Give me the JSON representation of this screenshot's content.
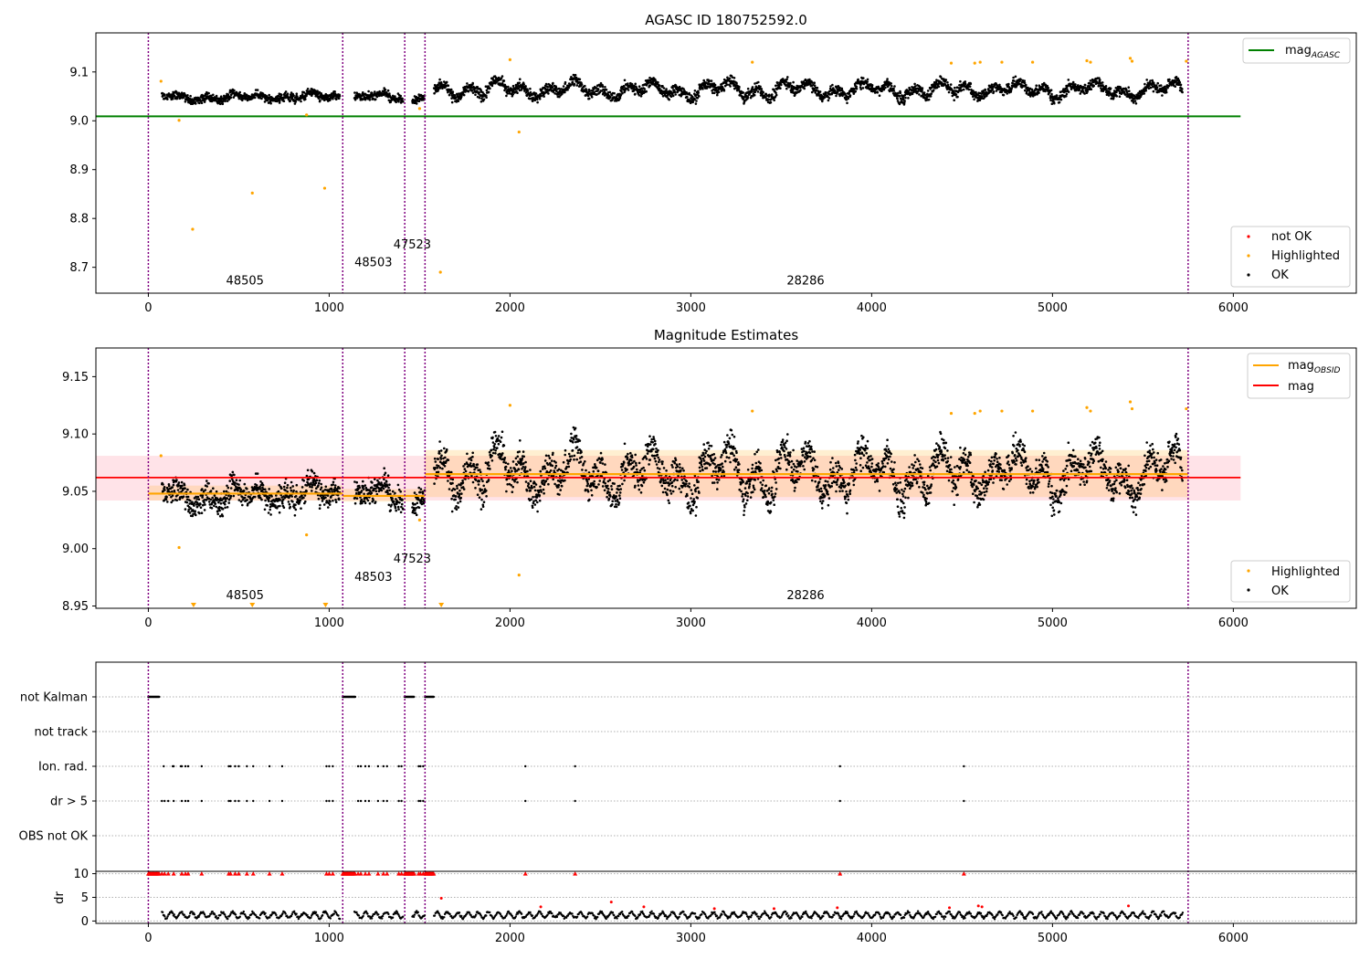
{
  "figure": {
    "top_title": "AGASC ID 180752592.0",
    "middle_title": "Magnitude Estimates"
  },
  "colors": {
    "ok": "#000000",
    "highlighted": "#ffa500",
    "not_ok": "#ff0000",
    "agasc_line": "#008000",
    "obsid_line": "#ffa500",
    "mag_line": "#ff0000",
    "obsid_boundary": "#800080",
    "mag_band": "#ffc0cb"
  },
  "chart_data": [
    {
      "type": "scatter",
      "title": "AGASC ID 180752592.0",
      "xlim": [
        -290,
        6680
      ],
      "ylim": [
        8.647,
        9.18
      ],
      "xticks": [
        "0",
        "1000",
        "2000",
        "3000",
        "4000",
        "5000",
        "6000"
      ],
      "yticks": [
        "8.7",
        "8.8",
        "8.9",
        "9.0",
        "9.1"
      ],
      "obsid_boundaries": [
        0,
        1075,
        1418,
        1530,
        5750
      ],
      "obsid_labels": [
        {
          "text": "48505",
          "x": 430,
          "y": 8.665
        },
        {
          "text": "48503",
          "x": 1140,
          "y": 8.702
        },
        {
          "text": "47523",
          "x": 1355,
          "y": 8.739
        },
        {
          "text": "28286",
          "x": 3530,
          "y": 8.665
        }
      ],
      "mag_agasc": {
        "value": 9.009,
        "x_range": [
          -290,
          6040
        ]
      },
      "ok_segments": [
        {
          "x": [
            75,
            1060
          ],
          "base": 9.049,
          "amp": 0.01,
          "noise": 0.009
        },
        {
          "x": [
            1140,
            1410
          ],
          "base": 9.048,
          "amp": 0.01,
          "noise": 0.009
        },
        {
          "x": [
            1460,
            1530
          ],
          "base": 9.048,
          "amp": 0.005,
          "noise": 0.008
        },
        {
          "x": [
            1580,
            5720
          ],
          "base": 9.064,
          "amp": 0.02,
          "noise": 0.012
        }
      ],
      "highlighted_points": [
        {
          "x": 70,
          "y": 9.081
        },
        {
          "x": 170,
          "y": 9.001
        },
        {
          "x": 245,
          "y": 8.778
        },
        {
          "x": 575,
          "y": 8.852
        },
        {
          "x": 975,
          "y": 8.862
        },
        {
          "x": 875,
          "y": 9.012
        },
        {
          "x": 1500,
          "y": 9.025
        },
        {
          "x": 1615,
          "y": 8.69
        },
        {
          "x": 2000,
          "y": 9.125
        },
        {
          "x": 2050,
          "y": 8.977
        },
        {
          "x": 3340,
          "y": 9.12
        },
        {
          "x": 4440,
          "y": 9.118
        },
        {
          "x": 4570,
          "y": 9.118
        },
        {
          "x": 4600,
          "y": 9.12
        },
        {
          "x": 4720,
          "y": 9.12
        },
        {
          "x": 4890,
          "y": 9.12
        },
        {
          "x": 5190,
          "y": 9.123
        },
        {
          "x": 5210,
          "y": 9.12
        },
        {
          "x": 5430,
          "y": 9.128
        },
        {
          "x": 5440,
          "y": 9.122
        },
        {
          "x": 5740,
          "y": 9.122
        }
      ],
      "legend_upper": [
        "mag$_{AGASC}$"
      ],
      "legend_lower": [
        "not OK",
        "Highlighted",
        "OK"
      ]
    },
    {
      "type": "scatter",
      "title": "Magnitude Estimates",
      "xlim": [
        -290,
        6680
      ],
      "ylim": [
        8.948,
        9.175
      ],
      "xticks": [
        "0",
        "1000",
        "2000",
        "3000",
        "4000",
        "5000",
        "6000"
      ],
      "yticks": [
        "8.95",
        "9.00",
        "9.05",
        "9.10",
        "9.15"
      ],
      "obsid_labels": [
        {
          "text": "48505",
          "x": 430,
          "y": 8.956
        },
        {
          "text": "48503",
          "x": 1140,
          "y": 8.972
        },
        {
          "text": "47523",
          "x": 1355,
          "y": 8.988
        },
        {
          "text": "28286",
          "x": 3530,
          "y": 8.956
        }
      ],
      "mag": {
        "value": 9.062,
        "band": [
          9.042,
          9.081
        ],
        "x_range": [
          -290,
          6040
        ]
      },
      "mag_obsid": [
        {
          "x": [
            0,
            1075
          ],
          "value": 9.048,
          "band": [
            9.042,
            9.055
          ]
        },
        {
          "x": [
            1075,
            1530
          ],
          "value": 9.046,
          "band": [
            9.041,
            9.052
          ]
        },
        {
          "x": [
            1530,
            5750
          ],
          "value": 9.065,
          "band": [
            9.045,
            9.086
          ]
        }
      ],
      "clipped_markers": [
        250,
        575,
        980,
        1620
      ],
      "legend_upper": [
        "mag$_{OBSID}$",
        "mag"
      ],
      "legend_lower": [
        "Highlighted",
        "OK"
      ]
    },
    {
      "type": "scatter",
      "xlim": [
        -290,
        6680
      ],
      "xticks": [
        "0",
        "1000",
        "2000",
        "3000",
        "4000",
        "5000",
        "6000"
      ],
      "flag_rows": [
        "not Kalman",
        "not track",
        "Ion. rad.",
        "dr > 5",
        "OBS not OK"
      ],
      "flags": {
        "not Kalman": [
          [
            0,
            60
          ],
          [
            1075,
            1145
          ],
          [
            1418,
            1470
          ],
          [
            1530,
            1580
          ]
        ],
        "Ion. rad.": [
          85,
          135,
          140,
          180,
          185,
          205,
          220,
          295,
          445,
          455,
          480,
          500,
          545,
          580,
          670,
          740,
          985,
          1000,
          1020,
          1160,
          1175,
          1200,
          1220,
          1270,
          1300,
          1320,
          1385,
          1400,
          1495,
          1505,
          1520,
          2085,
          2360,
          3825,
          4510
        ],
        "dr > 5": [
          75,
          90,
          110,
          140,
          185,
          205,
          220,
          295,
          445,
          455,
          480,
          500,
          545,
          580,
          670,
          740,
          985,
          1000,
          1020,
          1160,
          1175,
          1200,
          1220,
          1270,
          1300,
          1320,
          1385,
          1400,
          1495,
          1505,
          1520,
          2085,
          2360,
          3825,
          4510
        ]
      },
      "dr": {
        "ylabel": "dr",
        "yticks": [
          "0",
          "5",
          "10"
        ],
        "ylim": [
          -0.5,
          10.5
        ],
        "clip_value": 10,
        "ok_segments": [
          [
            75,
            1060
          ],
          [
            1140,
            1410
          ],
          [
            1460,
            1530
          ],
          [
            1580,
            5720
          ]
        ],
        "red_points": [
          {
            "x": 1620,
            "y": 4.8
          },
          {
            "x": 2170,
            "y": 3
          },
          {
            "x": 2560,
            "y": 4
          },
          {
            "x": 2740,
            "y": 3
          },
          {
            "x": 3130,
            "y": 2.6
          },
          {
            "x": 3460,
            "y": 2.6
          },
          {
            "x": 3810,
            "y": 2.8
          },
          {
            "x": 4430,
            "y": 2.8
          },
          {
            "x": 4590,
            "y": 3.2
          },
          {
            "x": 4610,
            "y": 3
          },
          {
            "x": 5420,
            "y": 3.2
          }
        ]
      }
    }
  ]
}
